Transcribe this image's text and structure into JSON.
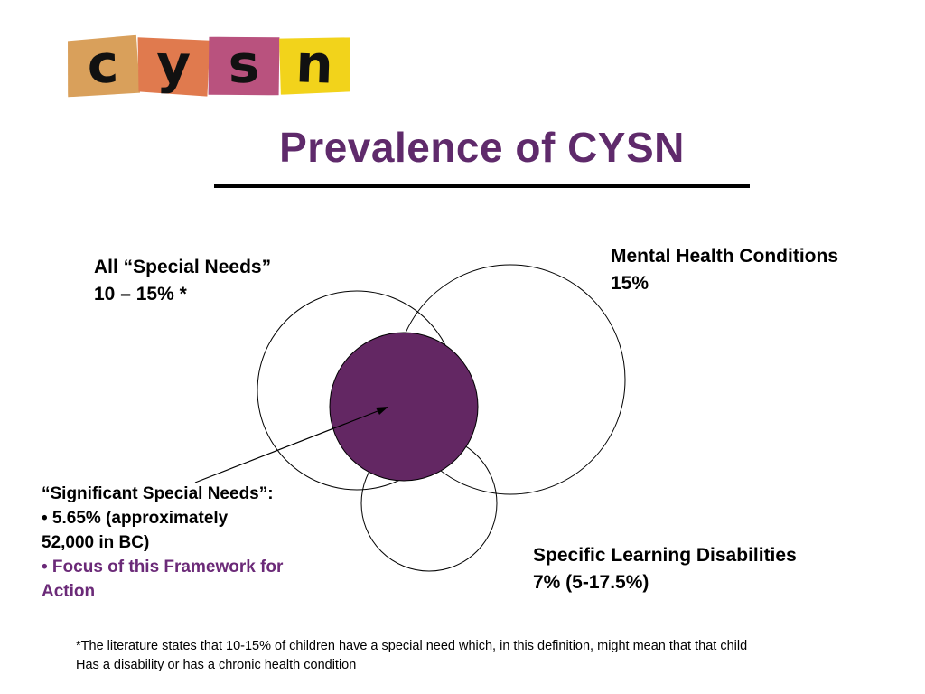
{
  "logo": {
    "letters": [
      "c",
      "y",
      "s",
      "n"
    ],
    "colors": [
      "#d9a05b",
      "#e07a4e",
      "#b9527e",
      "#f2d31b"
    ]
  },
  "title": "Prevalence of CYSN",
  "colors": {
    "title": "#5f2a6b",
    "overlap_fill": "#632763",
    "focus_text": "#6b2a78"
  },
  "labels": {
    "special_needs": {
      "line1": "All “Special Needs”",
      "line2": "10 – 15% *"
    },
    "mental_health": {
      "line1": "Mental Health Conditions",
      "line2": "15%"
    },
    "learning": {
      "line1": "Specific Learning Disabilities",
      "line2": "7% (5-17.5%)"
    }
  },
  "significant": {
    "heading": "“Significant Special Needs”:",
    "bullet1_line1": "• 5.65% (approximately",
    "bullet1_line2": "52,000 in BC)",
    "bullet2_line1": "• Focus of this Framework for",
    "bullet2_line2": "Action"
  },
  "footnote": {
    "line1": "*The literature states that 10-15% of children have a special need which, in this definition, might mean that that child",
    "line2": "Has a disability or has a chronic health condition"
  }
}
